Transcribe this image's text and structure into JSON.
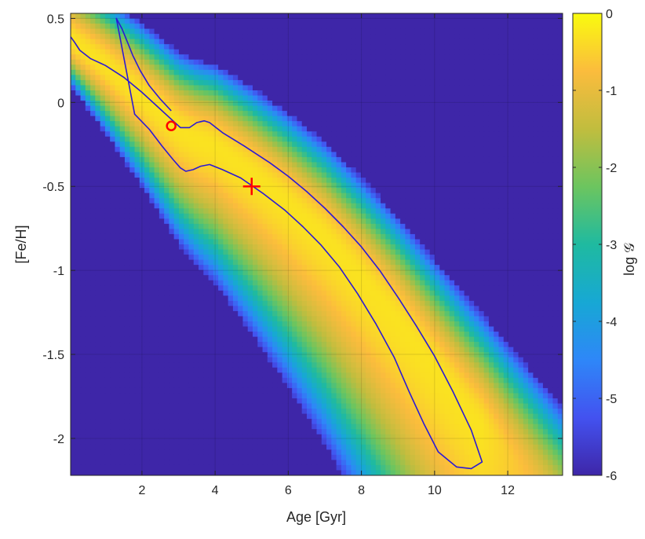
{
  "chart_data": {
    "type": "heatmap",
    "xlabel": "Age [Gyr]",
    "ylabel": "[Fe/H]",
    "colorbar_label": "log 𝒢",
    "xlim": [
      0.05,
      13.5
    ],
    "ylim": [
      -2.22,
      0.53
    ],
    "clim": [
      -6,
      0
    ],
    "colormap": "parula",
    "x_ticks": [
      2,
      4,
      6,
      8,
      10,
      12
    ],
    "x_tick_labels": [
      "2",
      "4",
      "6",
      "8",
      "10",
      "12"
    ],
    "y_ticks": [
      0.5,
      0,
      -0.5,
      -1,
      -1.5,
      -2
    ],
    "y_tick_labels": [
      "0.5",
      "0",
      "-0.5",
      "-1",
      "-1.5",
      "-2"
    ],
    "colorbar_ticks": [
      0,
      -1,
      -2,
      -3,
      -4,
      -5,
      -6
    ],
    "colorbar_tick_labels": [
      "0",
      "-1",
      "-2",
      "-3",
      "-4",
      "-5",
      "-6"
    ],
    "grid": true,
    "ridge": {
      "x": [
        0.0,
        1.0,
        2.0,
        2.5,
        3.0,
        3.5,
        4.0,
        5.0,
        6.0,
        7.0,
        8.0,
        9.0,
        10.0,
        11.0,
        12.0,
        13.5
      ],
      "y": [
        0.38,
        0.22,
        0.04,
        -0.06,
        -0.16,
        -0.22,
        -0.26,
        -0.42,
        -0.6,
        -0.8,
        -1.04,
        -1.3,
        -1.58,
        -1.86,
        -2.12,
        -2.5
      ]
    },
    "contour": {
      "level": -0.5,
      "color": "#2b1ad4",
      "x": [
        0.05,
        0.15,
        0.3,
        0.6,
        1.0,
        1.5,
        2.0,
        2.4,
        2.8,
        3.05,
        3.3,
        3.5,
        3.7,
        3.85,
        4.2,
        4.8,
        5.5,
        6.0,
        6.5,
        7.0,
        7.5,
        8.0,
        8.5,
        9.0,
        9.5,
        10.0,
        10.5,
        11.0,
        11.3,
        11.0,
        10.6,
        10.1,
        9.7,
        9.3,
        8.9,
        8.4,
        7.9,
        7.4,
        6.9,
        6.4,
        5.9,
        5.3,
        4.7,
        4.2,
        3.85,
        3.6,
        3.4,
        3.2,
        3.05,
        2.85,
        2.55,
        2.2,
        1.8,
        1.3,
        1.3,
        1.45,
        1.6,
        1.75,
        1.95,
        2.2,
        2.5,
        2.8
      ],
      "y": [
        0.39,
        0.36,
        0.31,
        0.26,
        0.22,
        0.15,
        0.06,
        -0.02,
        -0.1,
        -0.15,
        -0.15,
        -0.12,
        -0.11,
        -0.12,
        -0.18,
        -0.26,
        -0.36,
        -0.44,
        -0.53,
        -0.63,
        -0.74,
        -0.86,
        -1.0,
        -1.16,
        -1.33,
        -1.51,
        -1.72,
        -1.95,
        -2.14,
        -2.18,
        -2.17,
        -2.08,
        -1.91,
        -1.72,
        -1.52,
        -1.32,
        -1.14,
        -0.98,
        -0.85,
        -0.74,
        -0.64,
        -0.54,
        -0.45,
        -0.4,
        -0.37,
        -0.38,
        -0.4,
        -0.41,
        -0.39,
        -0.34,
        -0.26,
        -0.16,
        -0.07,
        0.5,
        0.5,
        0.44,
        0.36,
        0.28,
        0.19,
        0.1,
        0.02,
        -0.05
      ]
    },
    "markers": [
      {
        "shape": "circle",
        "x": 2.8,
        "y": -0.14,
        "color": "#ff0000"
      },
      {
        "shape": "plus",
        "x": 5.0,
        "y": -0.5,
        "color": "#ff0000"
      }
    ]
  }
}
